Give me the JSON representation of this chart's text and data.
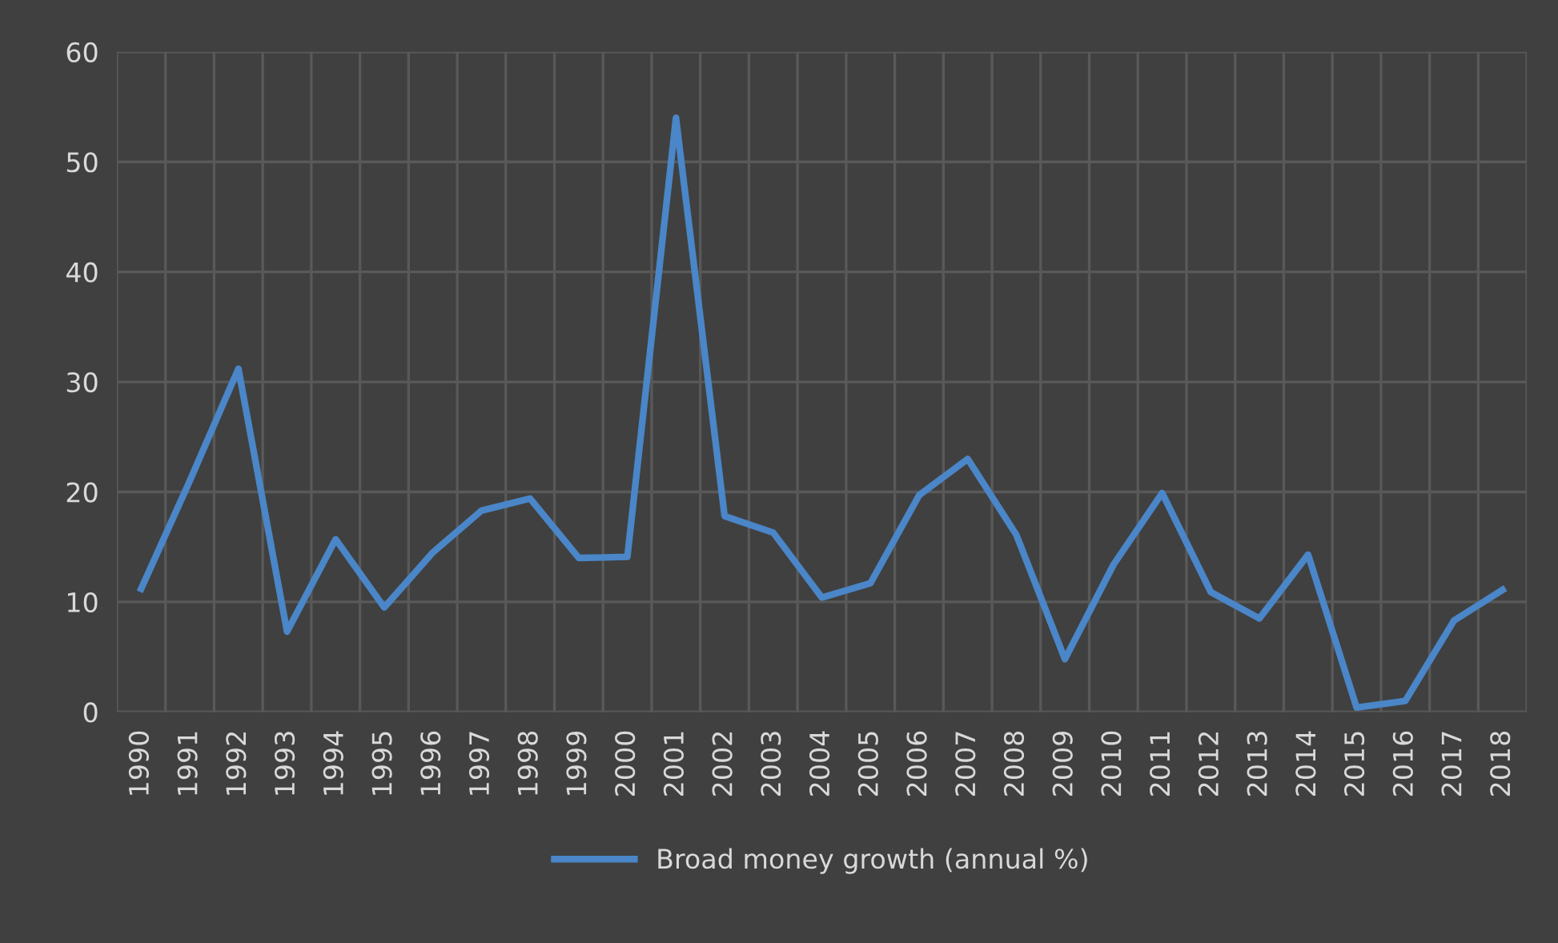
{
  "chart_data": {
    "type": "line",
    "categories": [
      "1990",
      "1991",
      "1992",
      "1993",
      "1994",
      "1995",
      "1996",
      "1997",
      "1998",
      "1999",
      "2000",
      "2001",
      "2002",
      "2003",
      "2004",
      "2005",
      "2006",
      "2007",
      "2008",
      "2009",
      "2010",
      "2011",
      "2012",
      "2013",
      "2014",
      "2015",
      "2016",
      "2017",
      "2018"
    ],
    "series": [
      {
        "name": "Broad money growth (annual %)",
        "color": "#4a86c8",
        "values": [
          11.2,
          21,
          31.2,
          7.3,
          15.7,
          9.5,
          14.5,
          18.3,
          19.4,
          14,
          14.1,
          54,
          17.8,
          16.3,
          10.4,
          11.7,
          19.7,
          23,
          16.1,
          4.8,
          13.4,
          19.9,
          10.9,
          8.5,
          14.3,
          0.4,
          1,
          8.3,
          11.1
        ]
      }
    ],
    "ylim": [
      0,
      60
    ],
    "yticks": [
      0,
      10,
      20,
      30,
      40,
      50,
      60
    ],
    "grid": true,
    "legend": "bottom",
    "marker": "none",
    "line_style": "solid"
  }
}
